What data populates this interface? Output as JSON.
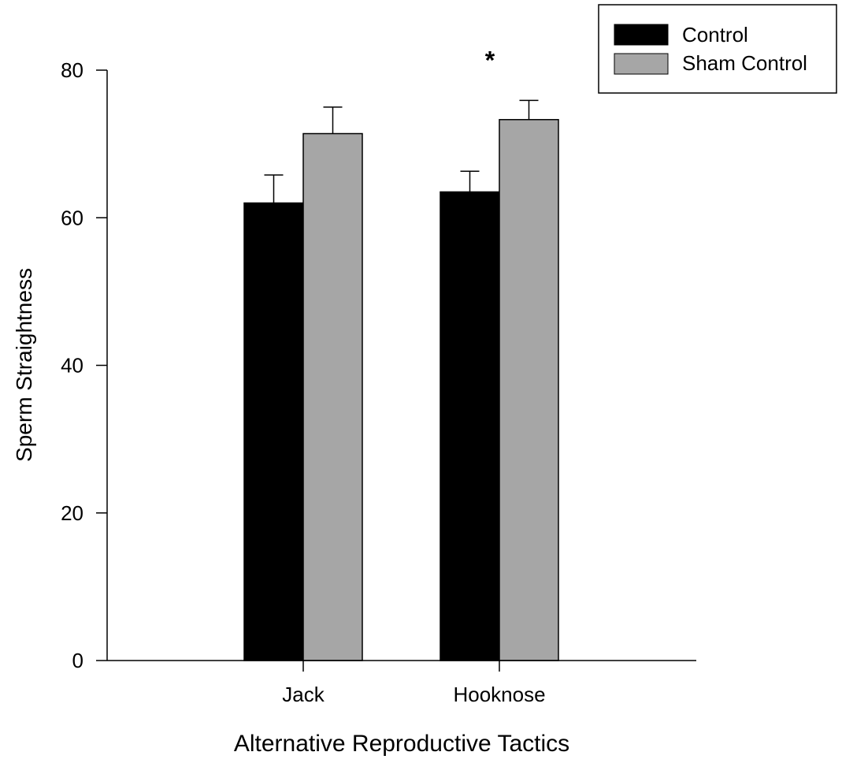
{
  "chart_data": {
    "type": "bar",
    "title": "",
    "xlabel": "Alternative Reproductive Tactics",
    "ylabel": "Sperm Straightness",
    "categories": [
      "Jack",
      "Hooknose"
    ],
    "series": [
      {
        "name": "Control",
        "values": [
          62.0,
          63.5
        ],
        "errors": [
          3.8,
          2.8
        ],
        "color": "#000000"
      },
      {
        "name": "Sham Control",
        "values": [
          71.4,
          73.3
        ],
        "errors": [
          3.6,
          2.6
        ],
        "color": "#a6a6a6"
      }
    ],
    "ylim": [
      0,
      80
    ],
    "yticks": [
      0,
      20,
      40,
      60,
      80
    ],
    "grid": false,
    "legend_position": "top-right",
    "annotations": [
      {
        "category": "Hooknose",
        "text": "*"
      }
    ]
  }
}
